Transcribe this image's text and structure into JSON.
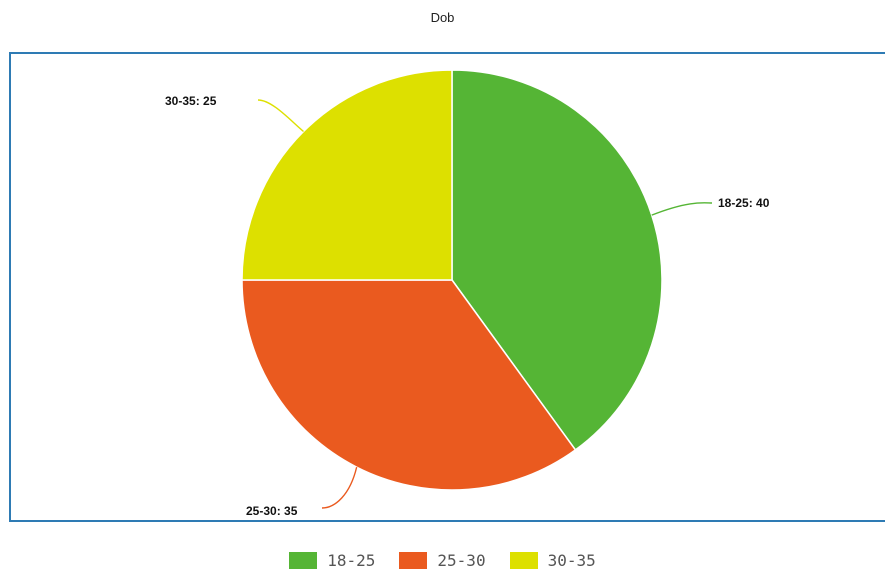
{
  "chart_data": {
    "type": "pie",
    "title": "Dob",
    "categories": [
      "18-25",
      "25-30",
      "30-35"
    ],
    "values": [
      40,
      35,
      25
    ],
    "colors": [
      "#55b535",
      "#ea5a1f",
      "#dde000"
    ],
    "slice_labels": [
      "18-25: 40",
      "25-30: 35",
      "30-35: 25"
    ],
    "legend_position": "bottom"
  }
}
